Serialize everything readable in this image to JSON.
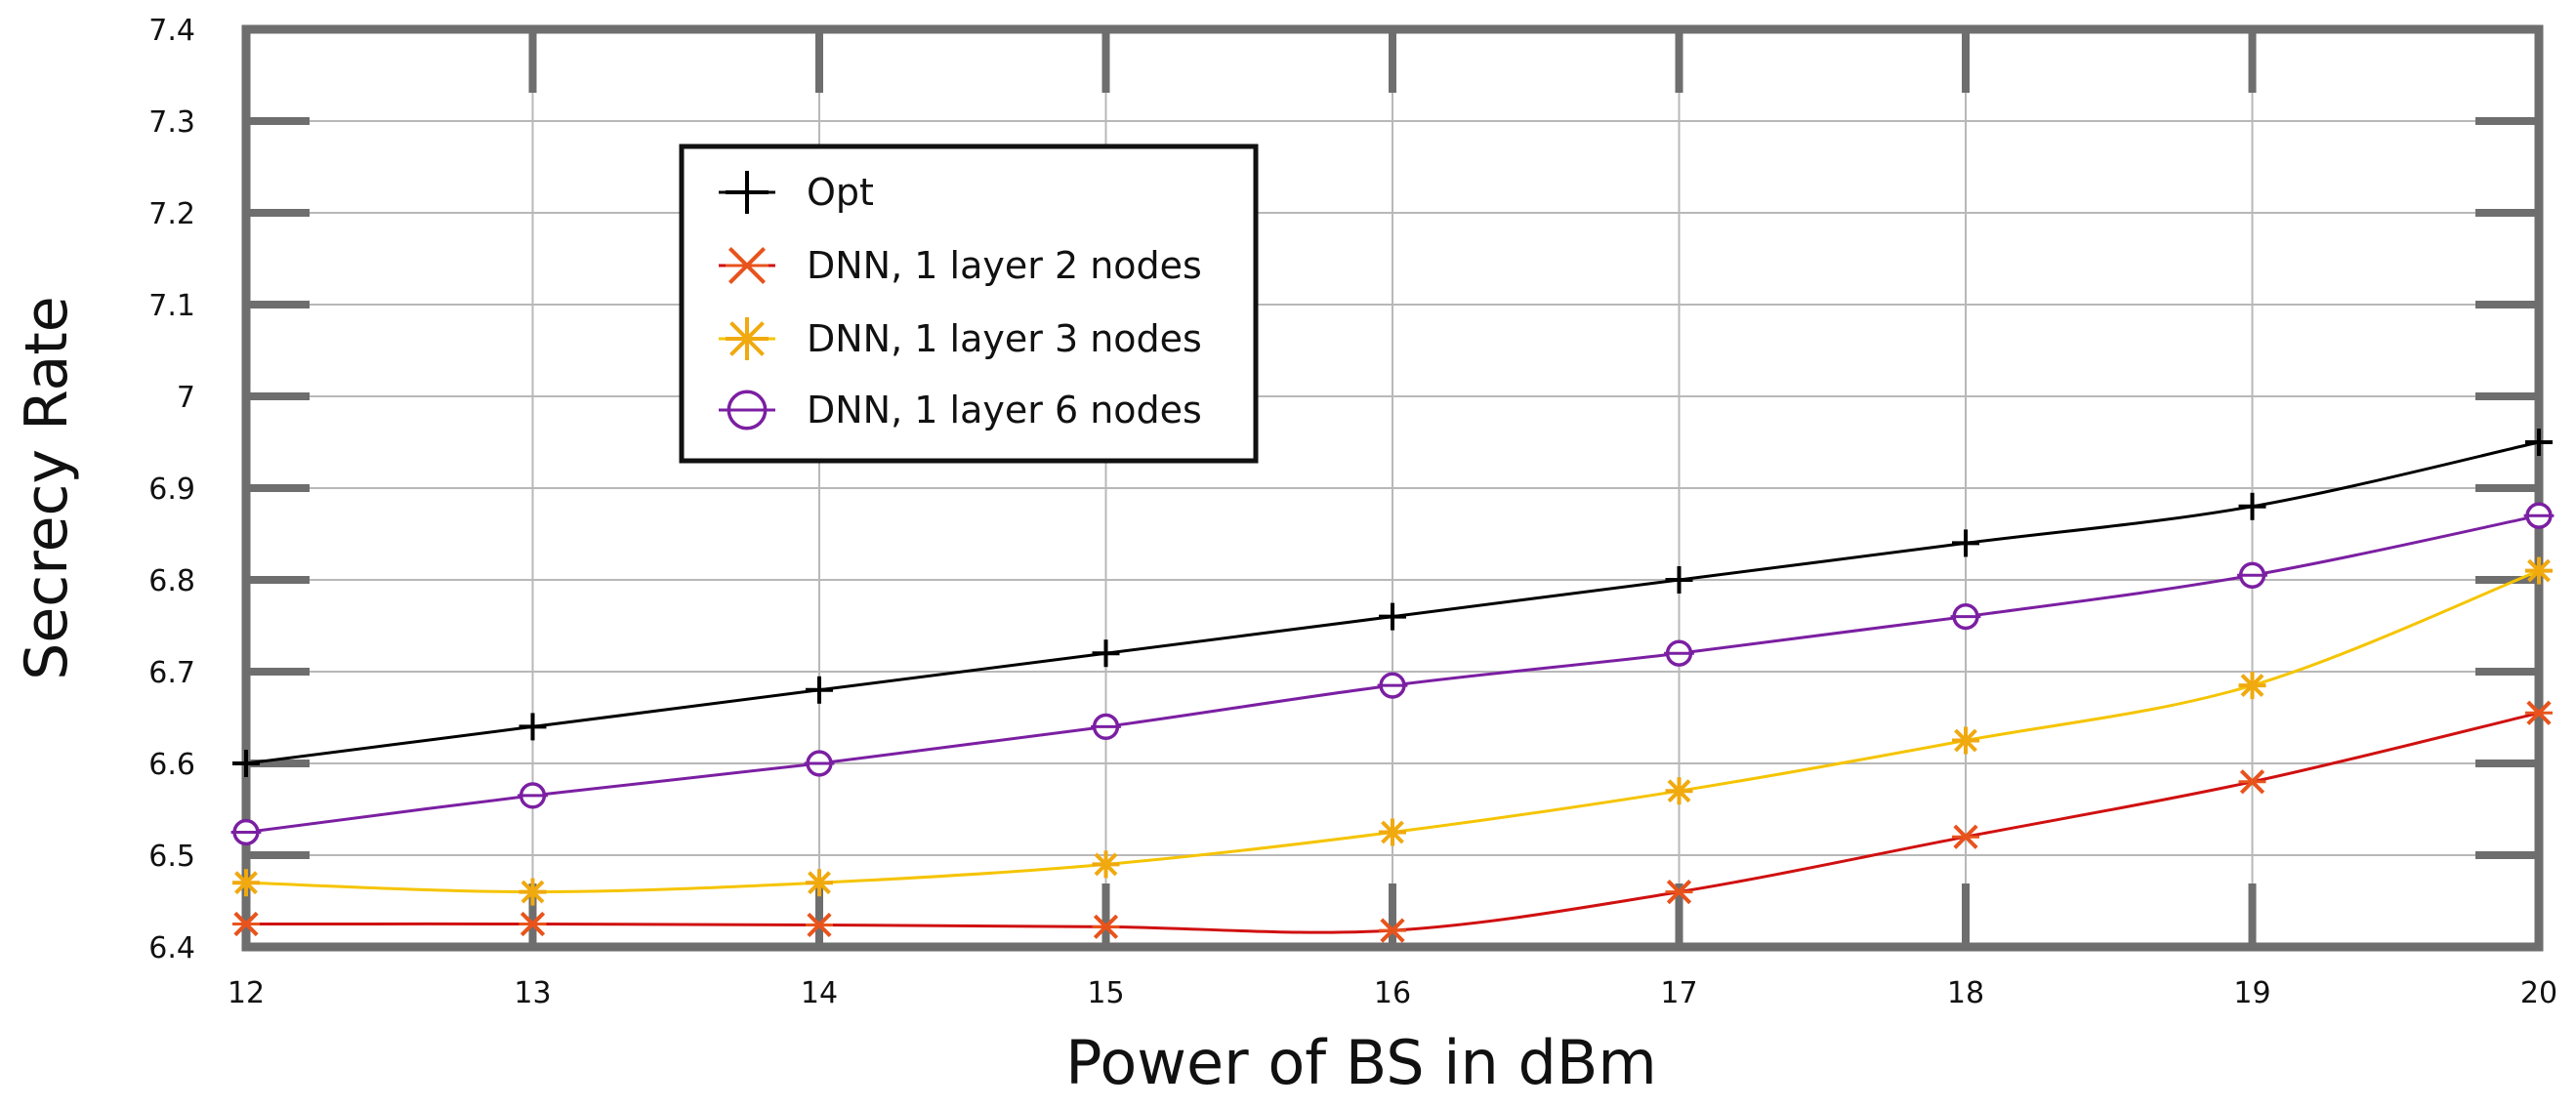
{
  "chart_data": {
    "type": "line",
    "title": "",
    "xlabel": "Power of BS in dBm",
    "ylabel": "Secrecy Rate",
    "x": [
      12,
      13,
      14,
      15,
      16,
      17,
      18,
      19,
      20
    ],
    "xlim": [
      12,
      20
    ],
    "ylim": [
      6.4,
      7.4
    ],
    "xticks": [
      "12",
      "13",
      "14",
      "15",
      "16",
      "17",
      "18",
      "19",
      "20"
    ],
    "yticks": [
      "6.4",
      "6.5",
      "6.6",
      "6.7",
      "6.8",
      "6.9",
      "7",
      "7.1",
      "7.2",
      "7.3",
      "7.4"
    ],
    "grid": true,
    "legend_position": "upper-left-center",
    "series": [
      {
        "name": "Opt",
        "color": "#000000",
        "marker": "plus",
        "values": [
          6.6,
          6.64,
          6.68,
          6.72,
          6.76,
          6.8,
          6.84,
          6.88,
          6.95
        ]
      },
      {
        "name": "DNN, 1 layer 2 nodes",
        "color": "#d01010",
        "marker_color": "#e8531c",
        "marker": "x",
        "values": [
          6.425,
          6.425,
          6.424,
          6.422,
          6.418,
          6.46,
          6.52,
          6.58,
          6.655
        ]
      },
      {
        "name": "DNN, 1 layer 3 nodes",
        "color": "#f5c400",
        "marker_color": "#f0a90f",
        "marker": "asterisk",
        "values": [
          6.47,
          6.46,
          6.47,
          6.49,
          6.525,
          6.57,
          6.625,
          6.685,
          6.81
        ]
      },
      {
        "name": "DNN, 1 layer 6 nodes",
        "color": "#7b1fa2",
        "marker_color": "#7b1fa2",
        "marker": "circle",
        "values": [
          6.525,
          6.565,
          6.6,
          6.64,
          6.685,
          6.72,
          6.76,
          6.805,
          6.87
        ]
      }
    ]
  }
}
